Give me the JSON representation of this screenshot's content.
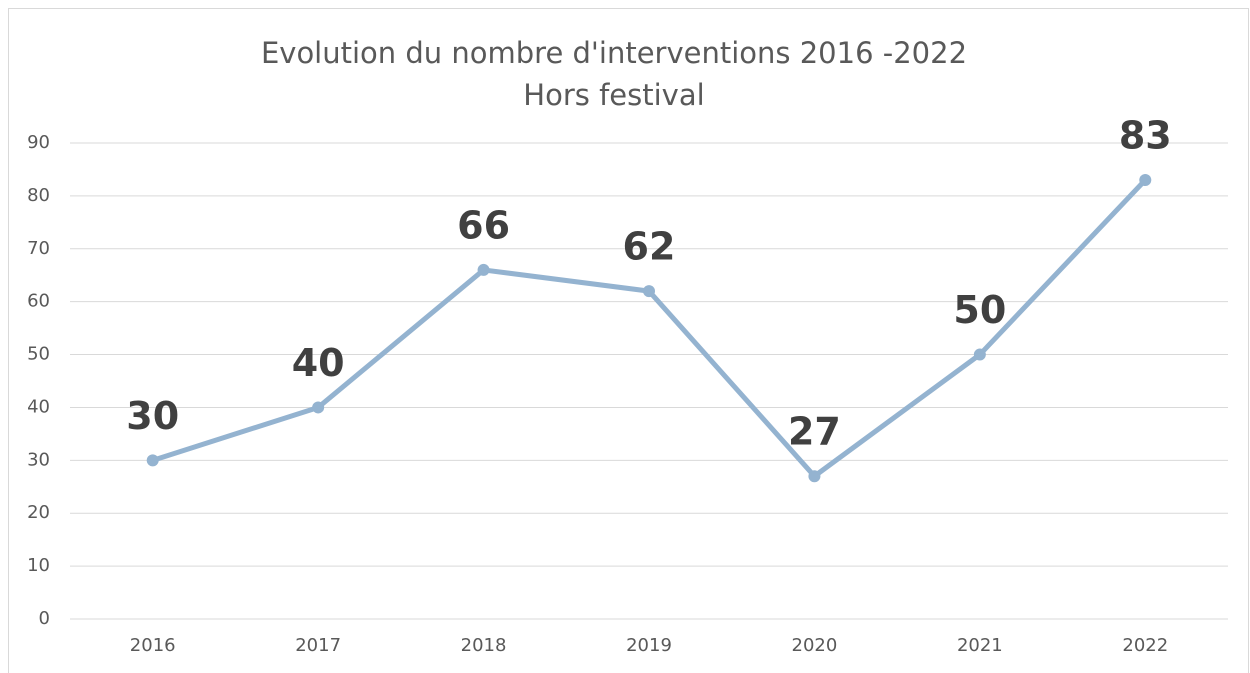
{
  "chart_data": {
    "type": "line",
    "title": "Evolution du nombre d'interventions 2016 -2022",
    "subtitle": "Hors festival",
    "categories": [
      "2016",
      "2017",
      "2018",
      "2019",
      "2020",
      "2021",
      "2022"
    ],
    "values": [
      30,
      40,
      66,
      62,
      27,
      50,
      83
    ],
    "color": "#94b3d0",
    "ylim": [
      0,
      90
    ],
    "yticks": [
      0,
      10,
      20,
      30,
      40,
      50,
      60,
      70,
      80,
      90
    ],
    "grid": true
  }
}
